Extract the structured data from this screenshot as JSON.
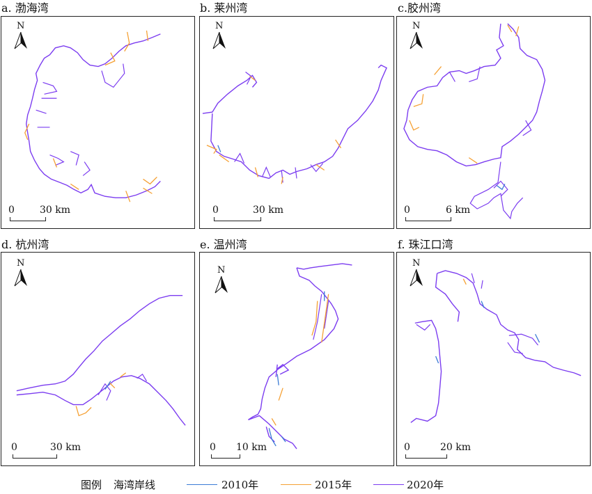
{
  "colors": {
    "y2010": "#3a7bd5",
    "y2015": "#f5a033",
    "y2020": "#7b3cf0"
  },
  "north_label": "N",
  "panels": [
    {
      "title": "a. 渤海湾",
      "scale": {
        "zero": "0",
        "dist": "30 km"
      }
    },
    {
      "title": "b. 莱州湾",
      "scale": {
        "zero": "0",
        "dist": "30 km"
      }
    },
    {
      "title": "c.胶州湾",
      "scale": {
        "zero": "0",
        "dist": "6 km"
      }
    },
    {
      "title": "d. 杭州湾",
      "scale": {
        "zero": "0",
        "dist": "30 km"
      }
    },
    {
      "title": "e. 温州湾",
      "scale": {
        "zero": "0",
        "dist": "10 km"
      }
    },
    {
      "title": "f. 珠江口湾",
      "scale": {
        "zero": "0",
        "dist": "20 km"
      }
    }
  ],
  "legend": {
    "title": "图例",
    "subtitle": "海湾岸线",
    "items": [
      {
        "label": "2010年",
        "color_key": "y2010"
      },
      {
        "label": "2015年",
        "color_key": "y2015"
      },
      {
        "label": "2020年",
        "color_key": "y2020"
      }
    ]
  }
}
